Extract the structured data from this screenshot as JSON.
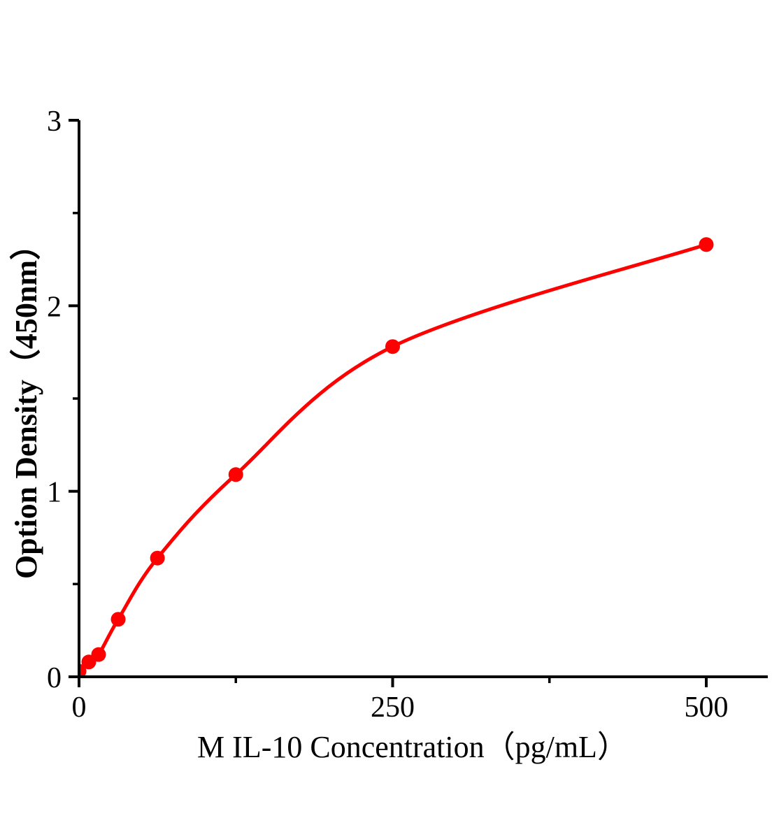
{
  "figure": {
    "background": "#ffffff"
  },
  "chart_data": {
    "type": "scatter",
    "title": "",
    "xlabel": "M IL-10 Concentration（pg/mL）",
    "ylabel": "Option Density（450nm）",
    "x": [
      0,
      7.8,
      15.6,
      31.25,
      62.5,
      125,
      250,
      500
    ],
    "y": [
      0.03,
      0.08,
      0.12,
      0.31,
      0.64,
      1.09,
      1.78,
      2.33
    ],
    "curve": "smooth",
    "marker": "circle",
    "line_color": "#ff0000",
    "marker_color": "#ff0000",
    "axis_color": "#000000",
    "xlim": [
      0,
      550
    ],
    "ylim": [
      0,
      3
    ],
    "x_major_ticks": [
      0,
      250,
      500
    ],
    "x_major_tick_labels": [
      "0",
      "250",
      "500"
    ],
    "x_minor_ticks": [
      125,
      375
    ],
    "y_major_ticks": [
      0,
      1,
      2,
      3
    ],
    "y_major_tick_labels": [
      "0",
      "1",
      "2",
      "3"
    ],
    "y_minor_ticks": [
      0.5,
      1.5,
      2.5
    ],
    "grid": false,
    "legend": null
  }
}
